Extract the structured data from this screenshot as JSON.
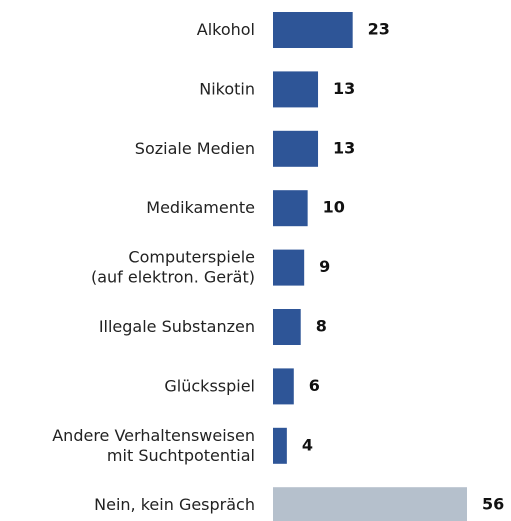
{
  "chart_data": {
    "type": "hbar",
    "categories": [
      "Alkohol",
      "Nikotin",
      "Soziale Medien",
      "Medikamente",
      "Computerspiele\n(auf elektron. Gerät)",
      "Illegale Substanzen",
      "Glücksspiel",
      "Andere Verhaltensweisen\nmit Suchtpotential",
      "Nein, kein Gespräch"
    ],
    "values": [
      23,
      13,
      13,
      10,
      9,
      8,
      6,
      4,
      56
    ],
    "colors": [
      "#2e5597",
      "#2e5597",
      "#2e5597",
      "#2e5597",
      "#2e5597",
      "#2e5597",
      "#2e5597",
      "#2e5597",
      "#b5c0cc"
    ]
  }
}
